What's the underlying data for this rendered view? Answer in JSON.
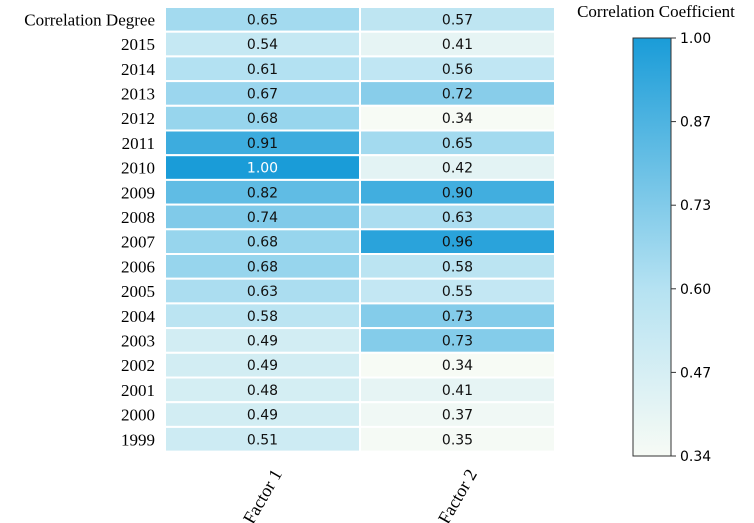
{
  "chart_data": {
    "type": "heatmap",
    "title": "",
    "rows": [
      "Correlation Degree",
      "2015",
      "2014",
      "2013",
      "2012",
      "2011",
      "2010",
      "2009",
      "2008",
      "2007",
      "2006",
      "2005",
      "2004",
      "2003",
      "2002",
      "2001",
      "2000",
      "1999"
    ],
    "columns": [
      "Factor 1",
      "Factor 2"
    ],
    "values": [
      [
        0.65,
        0.57
      ],
      [
        0.54,
        0.41
      ],
      [
        0.61,
        0.56
      ],
      [
        0.67,
        0.72
      ],
      [
        0.68,
        0.34
      ],
      [
        0.91,
        0.65
      ],
      [
        1.0,
        0.42
      ],
      [
        0.82,
        0.9
      ],
      [
        0.74,
        0.63
      ],
      [
        0.68,
        0.96
      ],
      [
        0.68,
        0.58
      ],
      [
        0.63,
        0.55
      ],
      [
        0.58,
        0.73
      ],
      [
        0.49,
        0.73
      ],
      [
        0.49,
        0.34
      ],
      [
        0.48,
        0.41
      ],
      [
        0.49,
        0.37
      ],
      [
        0.51,
        0.35
      ]
    ],
    "colorbar": {
      "title": "Correlation Coefficient",
      "min": 0.34,
      "max": 1.0,
      "ticks": [
        "1.00",
        "0.87",
        "0.73",
        "0.60",
        "0.47",
        "0.34"
      ],
      "low_color": "#f7fbf5",
      "high_color": "#1a9cd8"
    }
  }
}
